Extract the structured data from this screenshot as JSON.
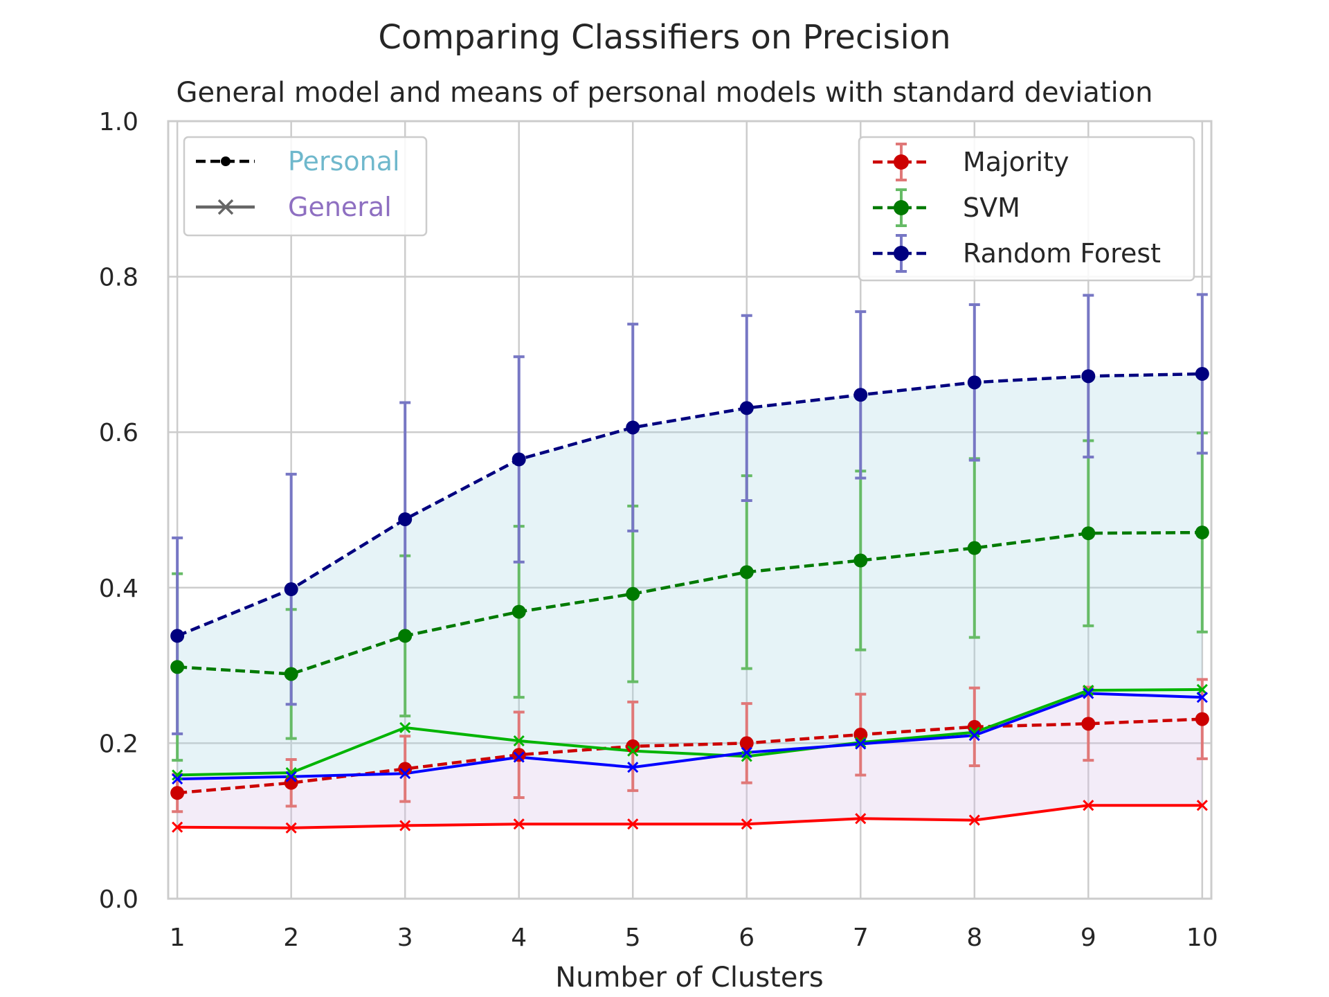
{
  "chart_data": {
    "type": "line",
    "title": "Comparing Classifiers on Precision",
    "subtitle": "General model and means of personal models with standard deviation",
    "xlabel": "Number of Clusters",
    "ylabel": "",
    "x": [
      1,
      2,
      3,
      4,
      5,
      6,
      7,
      8,
      9,
      10
    ],
    "xlim": [
      0.92,
      10.08
    ],
    "ylim": [
      0,
      1
    ],
    "xticks": [
      "1",
      "2",
      "3",
      "4",
      "5",
      "6",
      "7",
      "8",
      "9",
      "10"
    ],
    "yticks": [
      "0.0",
      "0.2",
      "0.4",
      "0.6",
      "0.8",
      "1.0"
    ],
    "grid": true,
    "style_legend": {
      "placement": "top-left",
      "entries": [
        {
          "label": "Personal",
          "marker": "dot",
          "linestyle": "dashed",
          "color": "#000000",
          "label_color": "#6fb8cc"
        },
        {
          "label": "General",
          "marker": "x",
          "linestyle": "solid",
          "color": "#666666",
          "label_color": "#8e6fc1"
        }
      ]
    },
    "series_legend": {
      "placement": "top-right",
      "entries": [
        "Majority",
        "SVM",
        "Random Forest"
      ]
    },
    "personal": [
      {
        "name": "Majority",
        "color": "#cc0000",
        "error_color": "#e07878",
        "values": [
          0.136,
          0.149,
          0.167,
          0.185,
          0.196,
          0.2,
          0.211,
          0.221,
          0.225,
          0.231
        ],
        "std": [
          0.024,
          0.03,
          0.042,
          0.055,
          0.057,
          0.051,
          0.052,
          0.05,
          0.047,
          0.051
        ]
      },
      {
        "name": "SVM",
        "color": "#007a00",
        "error_color": "#66bb66",
        "values": [
          0.298,
          0.289,
          0.338,
          0.369,
          0.392,
          0.42,
          0.435,
          0.451,
          0.47,
          0.471
        ],
        "std": [
          0.12,
          0.083,
          0.103,
          0.11,
          0.113,
          0.124,
          0.115,
          0.115,
          0.119,
          0.128
        ]
      },
      {
        "name": "Random Forest",
        "color": "#00007f",
        "error_color": "#7777c4",
        "values": [
          0.338,
          0.398,
          0.488,
          0.565,
          0.606,
          0.631,
          0.648,
          0.664,
          0.672,
          0.675
        ],
        "std": [
          0.126,
          0.148,
          0.15,
          0.132,
          0.133,
          0.119,
          0.107,
          0.1,
          0.104,
          0.102
        ]
      }
    ],
    "general": [
      {
        "name": "Majority",
        "color": "#ff0000",
        "values": [
          0.092,
          0.091,
          0.094,
          0.096,
          0.096,
          0.096,
          0.103,
          0.101,
          0.12,
          0.12
        ]
      },
      {
        "name": "SVM",
        "color": "#00b400",
        "values": [
          0.159,
          0.162,
          0.22,
          0.203,
          0.19,
          0.183,
          0.201,
          0.214,
          0.268,
          0.269
        ]
      },
      {
        "name": "Random Forest",
        "color": "#0000ff",
        "values": [
          0.154,
          0.157,
          0.161,
          0.182,
          0.169,
          0.188,
          0.199,
          0.21,
          0.264,
          0.259
        ]
      }
    ],
    "fill_between": [
      {
        "upper": "Random Forest personal",
        "lower": "Random Forest general",
        "color": "#add8e6",
        "opacity": 0.3
      },
      {
        "upper": "Random Forest general",
        "lower": "Majority general",
        "color": "#d8bfe8",
        "opacity": 0.3
      }
    ]
  }
}
